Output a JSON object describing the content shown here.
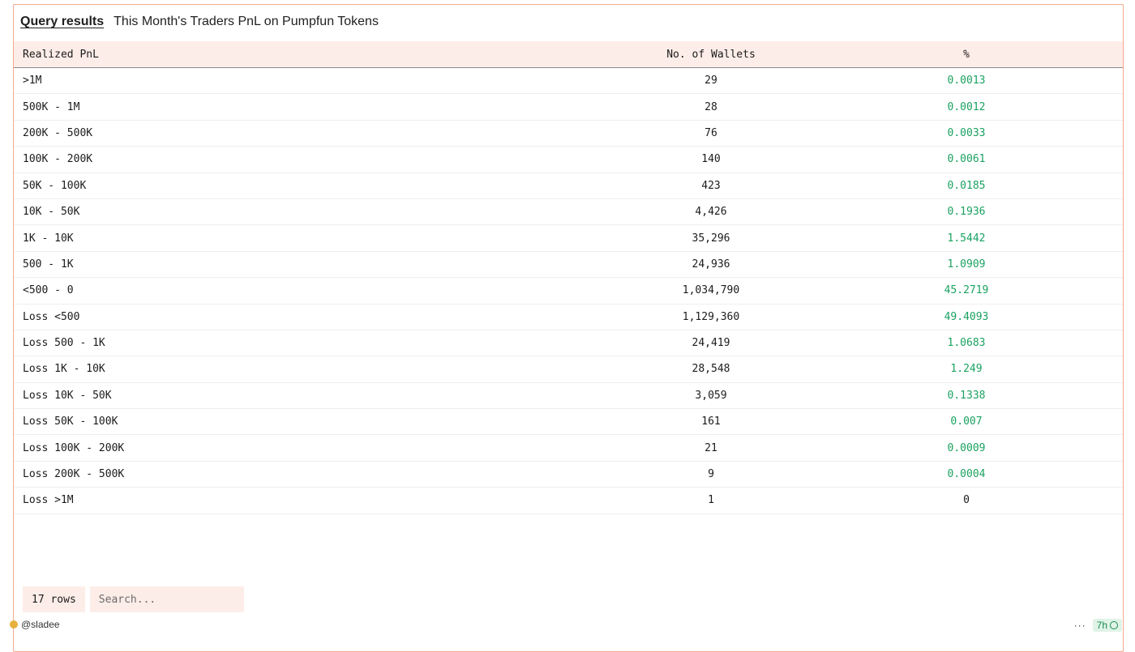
{
  "header": {
    "link_label": "Query results",
    "title": "This Month's Traders PnL on Pumpfun Tokens"
  },
  "table": {
    "columns": [
      "Realized PnL",
      "No. of Wallets",
      "%"
    ],
    "rows": [
      [
        ">1M",
        "29",
        "0.0013"
      ],
      [
        "500K - 1M",
        "28",
        "0.0012"
      ],
      [
        "200K - 500K",
        "76",
        "0.0033"
      ],
      [
        "100K - 200K",
        "140",
        "0.0061"
      ],
      [
        "50K - 100K",
        "423",
        "0.0185"
      ],
      [
        "10K - 50K",
        "4,426",
        "0.1936"
      ],
      [
        "1K - 10K",
        "35,296",
        "1.5442"
      ],
      [
        "500 - 1K",
        "24,936",
        "1.0909"
      ],
      [
        "<500 - 0",
        "1,034,790",
        "45.2719"
      ],
      [
        "Loss <500",
        "1,129,360",
        "49.4093"
      ],
      [
        "Loss 500 - 1K",
        "24,419",
        "1.0683"
      ],
      [
        "Loss 1K - 10K",
        "28,548",
        "1.249"
      ],
      [
        "Loss 10K - 50K",
        "3,059",
        "0.1338"
      ],
      [
        "Loss 50K - 100K",
        "161",
        "0.007"
      ],
      [
        "Loss 100K - 200K",
        "21",
        "0.0009"
      ],
      [
        "Loss 200K - 500K",
        "9",
        "0.0004"
      ],
      [
        "Loss >1M",
        "1",
        "0"
      ]
    ]
  },
  "footer": {
    "rows_count": "17 rows",
    "search_placeholder": "Search...",
    "author": "@sladee",
    "age": "7h"
  },
  "colors": {
    "accent_border": "#f5a98e",
    "header_bg": "#fdede8",
    "positive": "#1aa260"
  }
}
